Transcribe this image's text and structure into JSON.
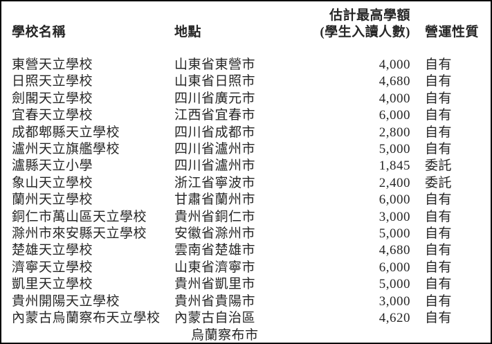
{
  "colors": {
    "text": "#262626",
    "page_border": "#000000",
    "background": "#ffffff"
  },
  "table": {
    "headers": {
      "school": "學校名稱",
      "location": "地點",
      "capacity_line1": "估計最高學額",
      "capacity_line2": "(學生入讀人數)",
      "operation": "營運性質"
    },
    "rows": [
      {
        "school": "東營天立學校",
        "location": "山東省東營市",
        "capacity": "4,000",
        "operation": "自有"
      },
      {
        "school": "日照天立學校",
        "location": "山東省日照市",
        "capacity": "4,680",
        "operation": "自有"
      },
      {
        "school": "劍閣天立學校",
        "location": "四川省廣元市",
        "capacity": "4,000",
        "operation": "自有"
      },
      {
        "school": "宜春天立學校",
        "location": "江西省宜春市",
        "capacity": "6,000",
        "operation": "自有"
      },
      {
        "school": "成都郫縣天立學校",
        "location": "四川省成都市",
        "capacity": "2,800",
        "operation": "自有"
      },
      {
        "school": "瀘州天立旗艦學校",
        "location": "四川省瀘州市",
        "capacity": "5,000",
        "operation": "自有"
      },
      {
        "school": "瀘縣天立小學",
        "location": "四川省瀘州市",
        "capacity": "1,845",
        "operation": "委託"
      },
      {
        "school": "象山天立學校",
        "location": "浙江省寧波市",
        "capacity": "2,400",
        "operation": "委託"
      },
      {
        "school": "蘭州天立學校",
        "location": "甘肅省蘭州市",
        "capacity": "6,000",
        "operation": "自有"
      },
      {
        "school": "銅仁市萬山區天立學校",
        "location": "貴州省銅仁市",
        "capacity": "3,000",
        "operation": "自有"
      },
      {
        "school": "滁州市來安縣天立學校",
        "location": "安徽省滁州市",
        "capacity": "5,000",
        "operation": "自有"
      },
      {
        "school": "楚雄天立學校",
        "location": "雲南省楚雄市",
        "capacity": "4,680",
        "operation": "自有"
      },
      {
        "school": "濟寧天立學校",
        "location": "山東省濟寧市",
        "capacity": "6,000",
        "operation": "自有"
      },
      {
        "school": "凱里天立學校",
        "location": "貴州省凱里市",
        "capacity": "5,000",
        "operation": "自有"
      },
      {
        "school": "貴州開陽天立學校",
        "location": "貴州省貴陽市",
        "capacity": "3,000",
        "operation": "自有"
      },
      {
        "school": "內蒙古烏蘭察布天立學校",
        "location": "內蒙古自治區",
        "location_line2": "烏蘭察布市",
        "capacity": "4,620",
        "operation": "自有"
      }
    ]
  }
}
